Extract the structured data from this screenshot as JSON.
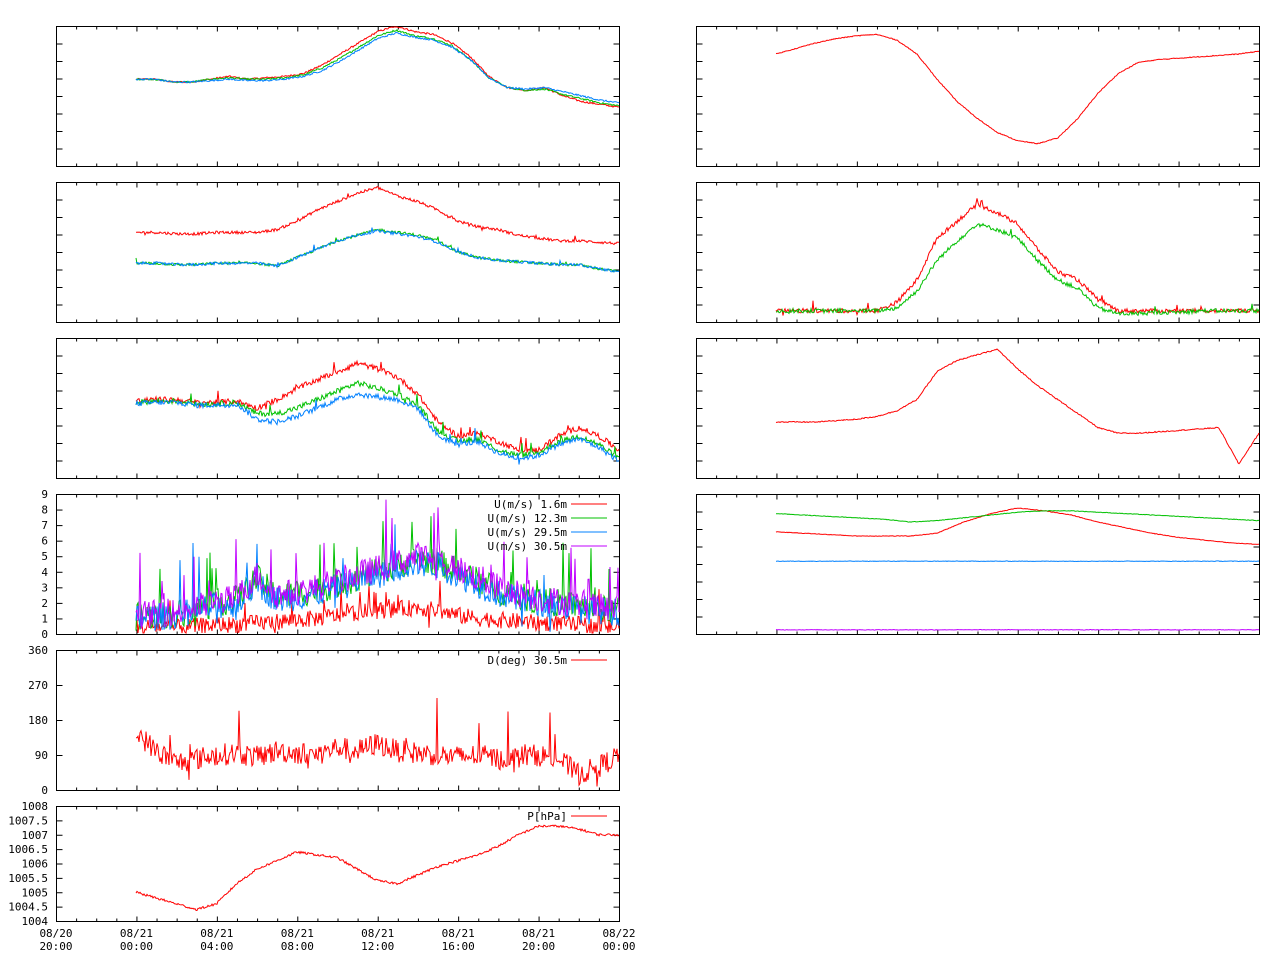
{
  "time_ticks": [
    {
      "line1": "08/20",
      "line2": "20:00"
    },
    {
      "line1": "08/21",
      "line2": "00:00"
    },
    {
      "line1": "08/21",
      "line2": "04:00"
    },
    {
      "line1": "08/21",
      "line2": "08:00"
    },
    {
      "line1": "08/21",
      "line2": "12:00"
    },
    {
      "line1": "08/21",
      "line2": "16:00"
    },
    {
      "line1": "08/21",
      "line2": "20:00"
    },
    {
      "line1": "08/22",
      "line2": "00:00"
    }
  ],
  "colors": {
    "red": "#ff0000",
    "green": "#00c000",
    "blue": "#0080ff",
    "purple": "#c000ff",
    "frame": "#000000"
  },
  "chart_data": [
    {
      "id": "L1",
      "type": "line",
      "title": "",
      "grid": false,
      "series": [
        {
          "color": "#ff0000",
          "values": [
            0.62,
            0.62,
            0.6,
            0.6,
            0.62,
            0.64,
            0.62,
            0.63,
            0.64,
            0.66,
            0.72,
            0.8,
            0.88,
            0.96,
            1.0,
            0.96,
            0.94,
            0.88,
            0.78,
            0.64,
            0.56,
            0.54,
            0.56,
            0.5,
            0.46,
            0.44,
            0.42
          ]
        },
        {
          "color": "#00c000",
          "values": [
            0.62,
            0.62,
            0.6,
            0.6,
            0.62,
            0.63,
            0.62,
            0.62,
            0.63,
            0.65,
            0.7,
            0.77,
            0.85,
            0.93,
            0.97,
            0.93,
            0.91,
            0.86,
            0.76,
            0.63,
            0.56,
            0.54,
            0.55,
            0.51,
            0.48,
            0.45,
            0.43
          ]
        },
        {
          "color": "#0080ff",
          "values": [
            0.62,
            0.62,
            0.6,
            0.6,
            0.61,
            0.62,
            0.61,
            0.61,
            0.62,
            0.64,
            0.68,
            0.75,
            0.83,
            0.91,
            0.95,
            0.92,
            0.9,
            0.85,
            0.76,
            0.63,
            0.56,
            0.55,
            0.56,
            0.53,
            0.5,
            0.47,
            0.45
          ]
        }
      ]
    },
    {
      "id": "L2",
      "type": "line",
      "title": "",
      "grid": false,
      "series": [
        {
          "color": "#ff0000",
          "values": [
            0.64,
            0.64,
            0.63,
            0.63,
            0.64,
            0.64,
            0.64,
            0.66,
            0.72,
            0.8,
            0.86,
            0.92,
            0.96,
            0.9,
            0.86,
            0.8,
            0.72,
            0.68,
            0.66,
            0.62,
            0.6,
            0.58,
            0.58,
            0.57,
            0.56
          ]
        },
        {
          "color": "#00c000",
          "values": [
            0.42,
            0.42,
            0.41,
            0.41,
            0.42,
            0.42,
            0.42,
            0.4,
            0.46,
            0.52,
            0.58,
            0.62,
            0.66,
            0.64,
            0.62,
            0.58,
            0.5,
            0.46,
            0.44,
            0.43,
            0.42,
            0.41,
            0.41,
            0.38,
            0.36
          ]
        },
        {
          "color": "#0080ff",
          "values": [
            0.42,
            0.42,
            0.41,
            0.41,
            0.42,
            0.42,
            0.42,
            0.4,
            0.46,
            0.52,
            0.58,
            0.62,
            0.65,
            0.63,
            0.61,
            0.57,
            0.5,
            0.46,
            0.44,
            0.43,
            0.42,
            0.41,
            0.41,
            0.38,
            0.36
          ]
        }
      ]
    },
    {
      "id": "L3",
      "type": "line",
      "title": "",
      "grid": false,
      "series": [
        {
          "color": "#ff0000",
          "values": [
            0.55,
            0.56,
            0.56,
            0.54,
            0.54,
            0.55,
            0.5,
            0.56,
            0.64,
            0.7,
            0.76,
            0.82,
            0.78,
            0.72,
            0.6,
            0.4,
            0.3,
            0.32,
            0.26,
            0.2,
            0.2,
            0.3,
            0.36,
            0.3,
            0.2
          ]
        },
        {
          "color": "#00c000",
          "values": [
            0.54,
            0.55,
            0.55,
            0.53,
            0.53,
            0.54,
            0.46,
            0.46,
            0.5,
            0.56,
            0.62,
            0.68,
            0.64,
            0.6,
            0.52,
            0.34,
            0.26,
            0.28,
            0.2,
            0.16,
            0.18,
            0.26,
            0.3,
            0.24,
            0.14
          ]
        },
        {
          "color": "#0080ff",
          "values": [
            0.53,
            0.54,
            0.54,
            0.52,
            0.52,
            0.53,
            0.42,
            0.4,
            0.44,
            0.5,
            0.56,
            0.6,
            0.58,
            0.56,
            0.5,
            0.3,
            0.24,
            0.26,
            0.18,
            0.14,
            0.16,
            0.24,
            0.28,
            0.22,
            0.12
          ]
        }
      ]
    },
    {
      "id": "L4",
      "type": "line",
      "ylabel": "",
      "ylim": [
        0,
        9
      ],
      "yticks": [
        "0",
        "1",
        "2",
        "3",
        "4",
        "5",
        "6",
        "7",
        "8",
        "9"
      ],
      "legend_position": "top-right",
      "series": [
        {
          "name": "U(m/s)  1.6m",
          "color": "#ff0000",
          "values": [
            0.4,
            0.5,
            0.4,
            0.5,
            0.6,
            0.6,
            0.7,
            0.8,
            0.9,
            1.0,
            1.2,
            1.4,
            1.5,
            1.6,
            1.7,
            1.5,
            1.2,
            1.0,
            0.9,
            0.8,
            0.7,
            0.7,
            0.6,
            0.5,
            0.4
          ]
        },
        {
          "name": "U(m/s) 12.3m",
          "color": "#00c000",
          "values": [
            1.1,
            1.2,
            1.3,
            1.6,
            2.0,
            2.2,
            3.6,
            2.4,
            2.6,
            2.8,
            3.2,
            3.6,
            4.0,
            4.4,
            4.8,
            4.6,
            4.0,
            3.4,
            2.8,
            2.4,
            2.2,
            2.0,
            1.8,
            1.6,
            1.5
          ]
        },
        {
          "name": "U(m/s) 29.5m",
          "color": "#0080ff",
          "values": [
            1.0,
            1.1,
            1.2,
            1.5,
            1.8,
            2.0,
            3.3,
            2.2,
            2.4,
            2.6,
            3.0,
            3.4,
            3.8,
            4.2,
            4.6,
            4.4,
            3.8,
            3.2,
            2.6,
            2.2,
            2.0,
            1.8,
            1.6,
            1.5,
            1.4
          ]
        },
        {
          "name": "U(m/s) 30.5m",
          "color": "#c000ff",
          "values": [
            1.2,
            1.3,
            1.4,
            1.7,
            2.1,
            2.3,
            3.8,
            2.5,
            2.7,
            3.0,
            3.4,
            3.8,
            4.2,
            4.6,
            5.0,
            4.8,
            4.2,
            3.6,
            3.0,
            2.6,
            2.3,
            2.1,
            1.9,
            1.7,
            1.6
          ]
        }
      ]
    },
    {
      "id": "L5",
      "type": "line",
      "ylim": [
        0,
        360
      ],
      "yticks": [
        "0",
        "90",
        "180",
        "270",
        "360"
      ],
      "legend_position": "top-right",
      "series": [
        {
          "name": "D(deg)  30.5m",
          "color": "#ff0000",
          "values": [
            150,
            100,
            70,
            80,
            90,
            95,
            85,
            100,
            95,
            90,
            110,
            100,
            120,
            100,
            95,
            90,
            85,
            90,
            80,
            85,
            90,
            80,
            40,
            60,
            90
          ]
        }
      ]
    },
    {
      "id": "L6",
      "type": "line",
      "ylim": [
        1004,
        1008
      ],
      "yticks": [
        "1004",
        "1004.5",
        "1005",
        "1005.5",
        "1006",
        "1006.5",
        "1007",
        "1007.5",
        "1008"
      ],
      "legend_position": "top-right",
      "series": [
        {
          "name": "P[hPa]",
          "color": "#ff0000",
          "values": [
            1005.0,
            1004.8,
            1004.6,
            1004.4,
            1004.6,
            1005.3,
            1005.8,
            1006.1,
            1006.4,
            1006.3,
            1006.2,
            1005.8,
            1005.4,
            1005.3,
            1005.6,
            1005.9,
            1006.1,
            1006.3,
            1006.6,
            1007.0,
            1007.3,
            1007.3,
            1007.2,
            1007.0,
            1007.0
          ]
        }
      ]
    },
    {
      "id": "R1",
      "type": "line",
      "title": "",
      "grid": false,
      "series": [
        {
          "color": "#ff0000",
          "values": [
            0.8,
            0.84,
            0.88,
            0.91,
            0.93,
            0.94,
            0.9,
            0.8,
            0.62,
            0.46,
            0.34,
            0.24,
            0.18,
            0.16,
            0.2,
            0.34,
            0.52,
            0.66,
            0.74,
            0.76,
            0.77,
            0.78,
            0.79,
            0.8,
            0.82
          ]
        }
      ]
    },
    {
      "id": "R2",
      "type": "line",
      "title": "",
      "grid": false,
      "series": [
        {
          "color": "#ff0000",
          "values": [
            0.08,
            0.08,
            0.08,
            0.08,
            0.08,
            0.08,
            0.14,
            0.3,
            0.6,
            0.72,
            0.84,
            0.78,
            0.7,
            0.52,
            0.36,
            0.3,
            0.16,
            0.08,
            0.08,
            0.08,
            0.08,
            0.08,
            0.08,
            0.08,
            0.08
          ]
        },
        {
          "color": "#00c000",
          "values": [
            0.08,
            0.08,
            0.08,
            0.08,
            0.08,
            0.08,
            0.1,
            0.22,
            0.44,
            0.58,
            0.7,
            0.66,
            0.6,
            0.44,
            0.3,
            0.24,
            0.1,
            0.06,
            0.06,
            0.07,
            0.07,
            0.08,
            0.08,
            0.08,
            0.08
          ]
        }
      ]
    },
    {
      "id": "R3",
      "type": "line",
      "title": "",
      "grid": false,
      "series": [
        {
          "color": "#ff0000",
          "values": [
            0.4,
            0.4,
            0.4,
            0.41,
            0.42,
            0.44,
            0.48,
            0.56,
            0.76,
            0.84,
            0.88,
            0.92,
            0.78,
            0.66,
            0.56,
            0.46,
            0.36,
            0.32,
            0.32,
            0.33,
            0.34,
            0.35,
            0.36,
            0.1,
            0.32
          ]
        }
      ]
    },
    {
      "id": "R4",
      "type": "line",
      "title": "",
      "grid": false,
      "series": [
        {
          "color": "#ff0000",
          "values": [
            0.73,
            0.72,
            0.71,
            0.7,
            0.7,
            0.7,
            0.72,
            0.8,
            0.86,
            0.9,
            0.88,
            0.85,
            0.8,
            0.76,
            0.72,
            0.69,
            0.67,
            0.65,
            0.64
          ]
        },
        {
          "color": "#00c000",
          "values": [
            0.86,
            0.85,
            0.84,
            0.83,
            0.82,
            0.8,
            0.81,
            0.83,
            0.85,
            0.87,
            0.88,
            0.88,
            0.87,
            0.86,
            0.85,
            0.84,
            0.83,
            0.82,
            0.81
          ]
        },
        {
          "color": "#0080ff",
          "values": [
            0.52,
            0.52,
            0.52,
            0.52,
            0.52,
            0.52,
            0.52,
            0.52,
            0.52,
            0.52,
            0.52,
            0.52,
            0.52,
            0.52,
            0.52,
            0.52,
            0.52,
            0.52,
            0.52
          ]
        },
        {
          "color": "#c000ff",
          "values": [
            0.03,
            0.03,
            0.03,
            0.03,
            0.03,
            0.03,
            0.03,
            0.03,
            0.03,
            0.03,
            0.03,
            0.03,
            0.03,
            0.03,
            0.03,
            0.03,
            0.03,
            0.03,
            0.03
          ]
        }
      ]
    }
  ]
}
